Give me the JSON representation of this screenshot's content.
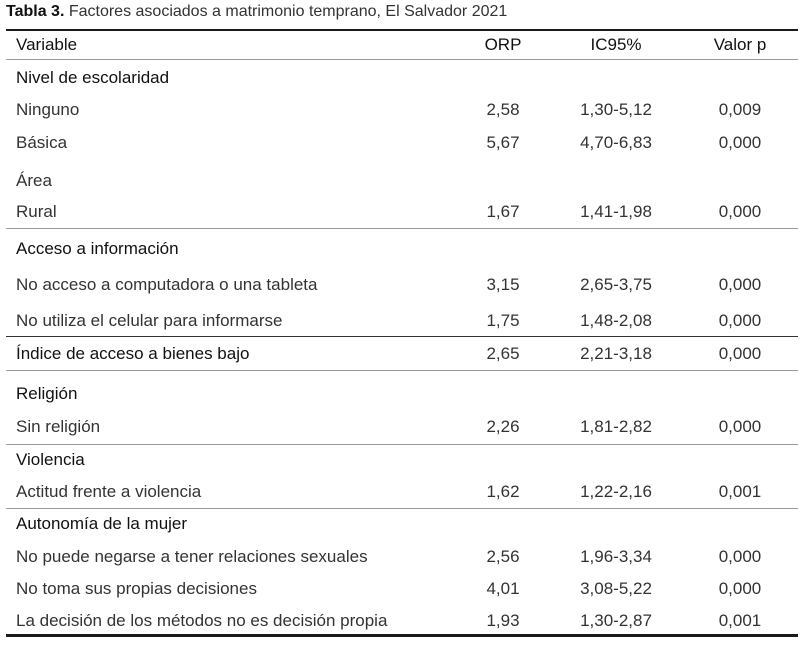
{
  "caption": {
    "label": "Tabla 3.",
    "text": " Factores asociados a matrimonio temprano, El Salvador 2021"
  },
  "table": {
    "headers": [
      "Variable",
      "ORP",
      "IC95%",
      "Valor p"
    ],
    "rows": [
      {
        "variable": "Nivel de escolaridad",
        "orp": "",
        "ic95": "",
        "p": ""
      },
      {
        "variable": "Ninguno",
        "orp": "2,58",
        "ic95": "1,30-5,12",
        "p": "0,009"
      },
      {
        "variable": "Básica",
        "orp": "5,67",
        "ic95": "4,70-6,83",
        "p": "0,000"
      },
      {
        "variable": "Área",
        "orp": "",
        "ic95": "",
        "p": ""
      },
      {
        "variable": "Rural",
        "orp": "1,67",
        "ic95": "1,41-1,98",
        "p": "0,000"
      },
      {
        "variable": "Acceso a información",
        "orp": "",
        "ic95": "",
        "p": ""
      },
      {
        "variable": "No acceso a computadora o una tableta",
        "orp": "3,15",
        "ic95": "2,65-3,75",
        "p": "0,000"
      },
      {
        "variable": "No utiliza el celular para informarse",
        "orp": "1,75",
        "ic95": "1,48-2,08",
        "p": "0,000"
      },
      {
        "variable": "Índice de acceso a bienes bajo",
        "orp": "2,65",
        "ic95": "2,21-3,18",
        "p": "0,000"
      },
      {
        "variable": "Religión",
        "orp": "",
        "ic95": "",
        "p": ""
      },
      {
        "variable": "Sin religión",
        "orp": "2,26",
        "ic95": "1,81-2,82",
        "p": "0,000"
      },
      {
        "variable": "Violencia",
        "orp": "",
        "ic95": "",
        "p": ""
      },
      {
        "variable": "Actitud frente a violencia",
        "orp": "1,62",
        "ic95": "1,22-2,16",
        "p": "0,001"
      },
      {
        "variable": "Autonomía de la mujer",
        "orp": "",
        "ic95": "",
        "p": ""
      },
      {
        "variable": "No puede negarse a tener relaciones sexuales",
        "orp": "2,56",
        "ic95": "1,96-3,34",
        "p": "0,000"
      },
      {
        "variable": "No toma sus propias decisiones",
        "orp": "4,01",
        "ic95": "3,08-5,22",
        "p": "0,000"
      },
      {
        "variable": "La decisión de los métodos no es decisión propia",
        "orp": "1,93",
        "ic95": "1,30-2,87",
        "p": "0,001"
      }
    ]
  }
}
